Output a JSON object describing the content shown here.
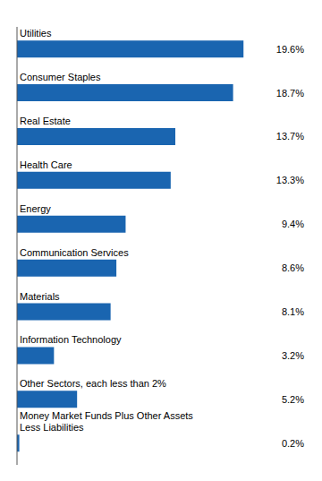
{
  "chart_data": {
    "type": "bar",
    "orientation": "horizontal",
    "categories": [
      "Money Market Funds Plus Other Assets\nLess Liabilities",
      "Other Sectors, each less than 2%",
      "Information Technology",
      "Materials",
      "Communication Services",
      "Energy",
      "Health Care",
      "Real Estate",
      "Consumer Staples",
      "Utilities"
    ],
    "values": [
      0.2,
      5.2,
      3.2,
      8.1,
      8.6,
      9.4,
      13.3,
      13.7,
      18.7,
      19.6
    ],
    "value_labels": [
      "0.2%",
      "5.2%",
      "3.2%",
      "8.1%",
      "8.6%",
      "9.4%",
      "13.3%",
      "13.7%",
      "18.7%",
      "19.6%"
    ],
    "color": "#1A65B0",
    "xlim": [
      0,
      25
    ],
    "data_labels": true,
    "tick_labels": false
  }
}
